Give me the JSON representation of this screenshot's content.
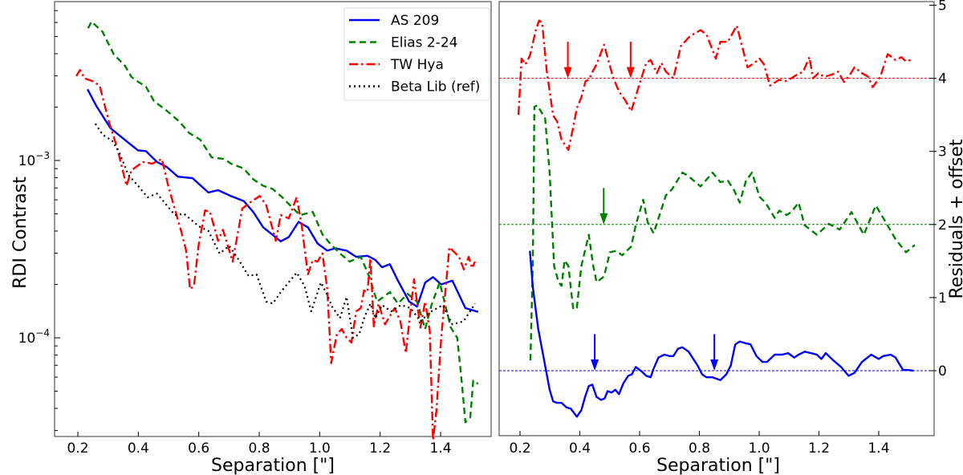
{
  "chart_data": [
    {
      "type": "line",
      "panel": "left",
      "xlabel": "Separation [\"]",
      "ylabel": "RDI Contrast",
      "yscale": "log",
      "xlim": [
        0.13,
        1.57
      ],
      "ylim": [
        2.77e-05,
        0.00787
      ],
      "xticks": [
        0.2,
        0.4,
        0.6,
        0.8,
        1.0,
        1.2,
        1.4
      ],
      "xtick_labels": [
        "0.2",
        "0.4",
        "0.6",
        "0.8",
        "1.0",
        "1.2",
        "1.4"
      ],
      "yticks": [
        0.0001,
        0.001
      ],
      "ytick_labels": [
        {
          "base": "10",
          "exp": "−4"
        },
        {
          "base": "10",
          "exp": "−3"
        }
      ],
      "legend": "top-right",
      "series": [
        {
          "name": "AS 209",
          "color": "#0000ff",
          "style": "solid",
          "x": [
            0.232,
            0.261,
            0.308,
            0.367,
            0.399,
            0.425,
            0.462,
            0.494,
            0.531,
            0.579,
            0.632,
            0.664,
            0.706,
            0.749,
            0.781,
            0.813,
            0.845,
            0.871,
            0.898,
            0.93,
            0.961,
            0.993,
            1.025,
            1.052,
            1.089,
            1.121,
            1.158,
            1.184,
            1.206,
            1.232,
            1.259,
            1.296,
            1.322,
            1.349,
            1.375,
            1.402,
            1.439,
            1.482,
            1.524
          ],
          "y": [
            0.00252,
            0.00203,
            0.00152,
            0.00126,
            0.00114,
            0.00113,
            0.00098,
            0.00092,
            0.00081,
            0.000795,
            0.00066,
            0.00068,
            0.00063,
            0.00059,
            0.00051,
            0.00042,
            0.00038,
            0.00035,
            0.00037,
            0.00045,
            0.00042,
            0.00034,
            0.00031,
            0.00032,
            0.00031,
            0.000286,
            0.00029,
            0.000275,
            0.00025,
            0.00026,
            0.00021,
            0.00016,
            0.00015,
            0.000205,
            0.00022,
            0.0002,
            0.00021,
            0.000147,
            0.00014
          ]
        },
        {
          "name": "Elias 2-24",
          "color": "#008000",
          "style": "dashed",
          "x": [
            0.234,
            0.245,
            0.282,
            0.319,
            0.356,
            0.377,
            0.399,
            0.425,
            0.452,
            0.494,
            0.537,
            0.568,
            0.605,
            0.643,
            0.685,
            0.706,
            0.749,
            0.781,
            0.813,
            0.845,
            0.876,
            0.908,
            0.935,
            0.977,
            1.009,
            1.036,
            1.067,
            1.099,
            1.136,
            1.163,
            1.19,
            1.232,
            1.259,
            1.291,
            1.322,
            1.349,
            1.37,
            1.397,
            1.418,
            1.434,
            1.455,
            1.471,
            1.482,
            1.498,
            1.508,
            1.524
          ],
          "y": [
            0.00557,
            0.00607,
            0.00531,
            0.00396,
            0.00342,
            0.00296,
            0.00278,
            0.00261,
            0.00216,
            0.00191,
            0.00165,
            0.00143,
            0.00131,
            0.00104,
            0.00102,
            0.00096,
            0.0009,
            0.00078,
            0.00072,
            0.00069,
            0.00062,
            0.000546,
            0.000492,
            0.000513,
            0.000383,
            0.000338,
            0.000299,
            0.000269,
            0.000286,
            0.000223,
            0.00016,
            0.000181,
            0.000156,
            0.000177,
            0.00016,
            0.000112,
            0.000153,
            0.000205,
            0.000147,
            0.000114,
            0.0001,
            5.4e-05,
            3.34e-05,
            3.56e-05,
            5.74e-05,
            5.5e-05
          ]
        },
        {
          "name": "TW Hya",
          "color": "#ff0000",
          "style": "dashdot",
          "x": [
            0.195,
            0.207,
            0.223,
            0.255,
            0.273,
            0.303,
            0.33,
            0.361,
            0.377,
            0.415,
            0.446,
            0.478,
            0.499,
            0.542,
            0.558,
            0.571,
            0.584,
            0.6,
            0.621,
            0.637,
            0.664,
            0.68,
            0.712,
            0.744,
            0.77,
            0.802,
            0.823,
            0.855,
            0.871,
            0.898,
            0.924,
            0.94,
            0.961,
            0.977,
            0.993,
            1.009,
            1.025,
            1.038,
            1.057,
            1.073,
            1.089,
            1.105,
            1.121,
            1.136,
            1.147,
            1.158,
            1.168,
            1.179,
            1.195,
            1.216,
            1.248,
            1.267,
            1.285,
            1.312,
            1.333,
            1.349,
            1.364,
            1.375,
            1.386,
            1.402,
            1.429,
            1.461,
            1.477,
            1.493,
            1.504,
            1.514
          ],
          "y": [
            0.00299,
            0.00324,
            0.0029,
            0.00278,
            0.00261,
            0.00165,
            0.00118,
            0.00072,
            0.00088,
            0.00098,
            0.00096,
            0.00102,
            0.00072,
            0.000399,
            0.000311,
            0.000188,
            0.000196,
            0.000338,
            0.000523,
            0.000513,
            0.000352,
            0.000407,
            0.000269,
            0.000535,
            0.00058,
            0.00063,
            0.00056,
            0.000352,
            0.000492,
            0.000472,
            0.00062,
            0.000434,
            0.000228,
            0.000274,
            0.000269,
            0.000299,
            0.000188,
            7.2e-05,
            0.000105,
            0.000112,
            0.0001,
            9.4e-05,
            0.000141,
            0.000147,
            0.000185,
            0.000181,
            0.00028,
            0.000116,
            0.000156,
            0.000119,
            0.000147,
            0.000124,
            8.2e-05,
            0.000214,
            0.000114,
            0.00016,
            0.00011,
            2.65e-05,
            3.87e-05,
            0.0001,
            0.000324,
            0.000286,
            0.000243,
            0.000286,
            0.000247,
            0.000269
          ]
        },
        {
          "name": "Beta Lib (ref)",
          "color": "#000000",
          "style": "dotted",
          "x": [
            0.258,
            0.282,
            0.314,
            0.335,
            0.367,
            0.399,
            0.431,
            0.462,
            0.494,
            0.521,
            0.552,
            0.6,
            0.632,
            0.669,
            0.701,
            0.733,
            0.765,
            0.791,
            0.823,
            0.845,
            0.871,
            0.924,
            0.95,
            0.972,
            1.004,
            1.025,
            1.041,
            1.067,
            1.089,
            1.11,
            1.131,
            1.147,
            1.168,
            1.184,
            1.206,
            1.237,
            1.269,
            1.301,
            1.333,
            1.37,
            1.407,
            1.439,
            1.476,
            1.514
          ],
          "y": [
            0.00161,
            0.0014,
            0.00129,
            0.00113,
            0.00083,
            0.00072,
            0.00062,
            0.00065,
            0.00056,
            0.000492,
            0.0005,
            0.000425,
            0.0004,
            0.000299,
            0.00033,
            0.000274,
            0.000223,
            0.000228,
            0.00016,
            0.000156,
            0.000181,
            0.000233,
            0.000196,
            0.000141,
            0.000205,
            0.000174,
            0.00015,
            0.000129,
            0.00017,
            0.0001,
            0.000105,
            0.000129,
            0.000156,
            0.000129,
            0.000153,
            0.000141,
            0.000153,
            0.000147,
            0.000124,
            0.000141,
            0.000153,
            0.000119,
            0.000124,
            0.000156
          ]
        }
      ]
    },
    {
      "type": "line",
      "panel": "right",
      "xlabel": "Separation [\"]",
      "ylabel": "Residuals + offset",
      "xlim": [
        0.13,
        1.57
      ],
      "ylim": [
        -0.89,
        5.05
      ],
      "xticks": [
        0.2,
        0.4,
        0.6,
        0.8,
        1.0,
        1.2,
        1.4
      ],
      "xtick_labels": [
        "0.2",
        "0.4",
        "0.6",
        "0.8",
        "1.0",
        "1.2",
        "1.4"
      ],
      "yticks": [
        0,
        1,
        2,
        3,
        4,
        5
      ],
      "ytick_labels": [
        "0",
        "1",
        "2",
        "3",
        "4",
        "5"
      ],
      "reference_lines": [
        {
          "y": 0,
          "color": "#0000ff"
        },
        {
          "y": 2,
          "color": "#008000"
        },
        {
          "y": 4,
          "color": "#ff0000"
        }
      ],
      "arrows": [
        {
          "x": 0.36,
          "y_from": 4.5,
          "y_to": 4.0,
          "color": "#ff0000"
        },
        {
          "x": 0.57,
          "y_from": 4.5,
          "y_to": 4.0,
          "color": "#ff0000"
        },
        {
          "x": 0.48,
          "y_from": 2.5,
          "y_to": 2.0,
          "color": "#008000"
        },
        {
          "x": 0.45,
          "y_from": 0.5,
          "y_to": 0.0,
          "color": "#0000ff"
        },
        {
          "x": 0.85,
          "y_from": 0.5,
          "y_to": 0.0,
          "color": "#0000ff"
        }
      ],
      "series": [
        {
          "name": "TW Hya",
          "color": "#ff0000",
          "style": "dashdot",
          "x": [
            0.195,
            0.205,
            0.218,
            0.233,
            0.254,
            0.264,
            0.274,
            0.289,
            0.311,
            0.324,
            0.339,
            0.362,
            0.378,
            0.39,
            0.405,
            0.419,
            0.43,
            0.445,
            0.456,
            0.481,
            0.511,
            0.531,
            0.552,
            0.572,
            0.592,
            0.622,
            0.637,
            0.658,
            0.673,
            0.688,
            0.713,
            0.738,
            0.769,
            0.804,
            0.824,
            0.855,
            0.87,
            0.895,
            0.925,
            0.961,
            0.981,
            1.001,
            1.016,
            1.036,
            1.067,
            1.087,
            1.107,
            1.127,
            1.147,
            1.168,
            1.18,
            1.198,
            1.218,
            1.243,
            1.264,
            1.284,
            1.304,
            1.319,
            1.344,
            1.365,
            1.38,
            1.405,
            1.43,
            1.456,
            1.476,
            1.491,
            1.506
          ],
          "y": [
            3.5,
            4.27,
            4.19,
            4.31,
            4.68,
            4.79,
            4.76,
            4.11,
            3.49,
            3.41,
            3.16,
            3.02,
            3.33,
            3.59,
            3.74,
            3.96,
            3.98,
            4.11,
            4.19,
            4.46,
            4.02,
            3.82,
            3.7,
            3.55,
            3.82,
            4.21,
            4.25,
            4.07,
            4.21,
            4.09,
            4.0,
            4.44,
            4.58,
            4.66,
            4.6,
            4.27,
            4.5,
            4.5,
            4.72,
            4.15,
            4.2,
            4.27,
            4.19,
            3.9,
            3.98,
            3.96,
            4.0,
            4.05,
            4.09,
            4.29,
            4.0,
            4.07,
            4.02,
            4.05,
            4.09,
            3.95,
            4.05,
            4.15,
            4.07,
            4.02,
            3.88,
            4.02,
            4.33,
            4.25,
            4.29,
            4.23,
            4.25
          ]
        },
        {
          "name": "Elias 2-24",
          "color": "#008000",
          "style": "dashed",
          "x": [
            0.235,
            0.243,
            0.248,
            0.258,
            0.284,
            0.299,
            0.314,
            0.329,
            0.339,
            0.349,
            0.362,
            0.378,
            0.39,
            0.405,
            0.43,
            0.445,
            0.456,
            0.481,
            0.501,
            0.521,
            0.542,
            0.572,
            0.587,
            0.612,
            0.627,
            0.647,
            0.688,
            0.708,
            0.743,
            0.761,
            0.804,
            0.844,
            0.87,
            0.895,
            0.915,
            0.935,
            0.956,
            0.976,
            1.001,
            1.021,
            1.052,
            1.067,
            1.092,
            1.107,
            1.132,
            1.152,
            1.193,
            1.233,
            1.269,
            1.309,
            1.35,
            1.39,
            1.415,
            1.456,
            1.491,
            1.521
          ],
          "y": [
            0.14,
            1.51,
            3.61,
            3.63,
            3.45,
            2.71,
            1.43,
            1.21,
            1.16,
            1.51,
            1.43,
            0.84,
            0.86,
            1.43,
            1.86,
            1.43,
            1.21,
            1.29,
            1.62,
            1.64,
            1.58,
            1.7,
            1.99,
            2.34,
            2.03,
            1.88,
            2.4,
            2.48,
            2.71,
            2.67,
            2.52,
            2.71,
            2.58,
            2.6,
            2.48,
            2.3,
            2.6,
            2.71,
            2.38,
            2.3,
            2.09,
            2.19,
            2.13,
            2.17,
            2.3,
            1.99,
            1.86,
            2.01,
            1.93,
            2.17,
            1.86,
            2.26,
            2.09,
            1.8,
            1.62,
            1.72
          ]
        },
        {
          "name": "AS 209",
          "color": "#0000ff",
          "style": "solid",
          "x": [
            0.233,
            0.243,
            0.261,
            0.279,
            0.299,
            0.311,
            0.324,
            0.339,
            0.355,
            0.37,
            0.39,
            0.405,
            0.419,
            0.43,
            0.442,
            0.456,
            0.471,
            0.483,
            0.493,
            0.506,
            0.519,
            0.531,
            0.546,
            0.562,
            0.574,
            0.587,
            0.607,
            0.622,
            0.637,
            0.647,
            0.663,
            0.683,
            0.701,
            0.713,
            0.728,
            0.743,
            0.764,
            0.794,
            0.809,
            0.824,
            0.844,
            0.87,
            0.89,
            0.905,
            0.92,
            0.935,
            0.951,
            0.971,
            0.991,
            1.011,
            1.026,
            1.052,
            1.077,
            1.097,
            1.117,
            1.132,
            1.152,
            1.173,
            1.193,
            1.208,
            1.223,
            1.248,
            1.274,
            1.299,
            1.319,
            1.344,
            1.375,
            1.4,
            1.415,
            1.44,
            1.456,
            1.481,
            1.496,
            1.516
          ],
          "y": [
            1.64,
            1.14,
            0.57,
            0.18,
            -0.26,
            -0.42,
            -0.44,
            -0.44,
            -0.5,
            -0.52,
            -0.63,
            -0.54,
            -0.34,
            -0.21,
            -0.19,
            -0.36,
            -0.4,
            -0.38,
            -0.28,
            -0.3,
            -0.26,
            -0.32,
            -0.17,
            -0.07,
            -0.05,
            0.05,
            -0.01,
            -0.07,
            -0.09,
            0.03,
            0.18,
            0.22,
            0.2,
            0.2,
            0.3,
            0.32,
            0.26,
            0.07,
            -0.05,
            -0.09,
            -0.09,
            -0.13,
            -0.05,
            0.07,
            0.36,
            0.4,
            0.38,
            0.36,
            0.2,
            0.12,
            0.12,
            0.22,
            0.22,
            0.24,
            0.18,
            0.22,
            0.26,
            0.24,
            0.22,
            0.16,
            0.24,
            0.14,
            0.05,
            -0.07,
            -0.03,
            0.12,
            0.22,
            0.16,
            0.2,
            0.22,
            0.18,
            0.01,
            0.01,
            0.0
          ]
        }
      ]
    }
  ]
}
